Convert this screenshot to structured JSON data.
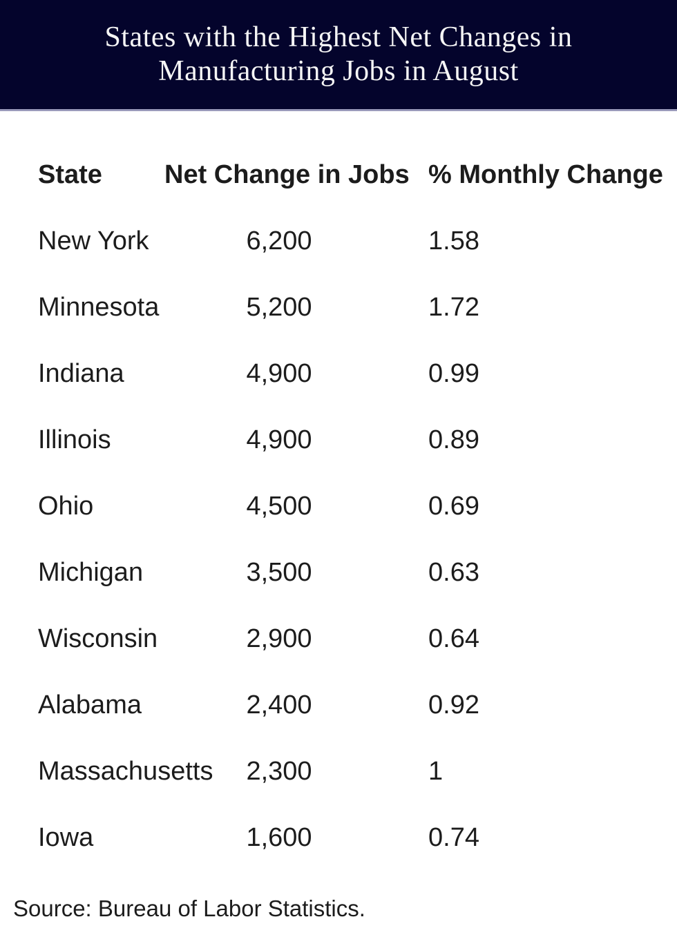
{
  "banner": {
    "title_lines": [
      "States with the Highest Net Changes in",
      "Manufacturing Jobs in August"
    ],
    "background_color": "#04042c",
    "title_color": "#f5f5f5",
    "divider_color": "#9a9aba"
  },
  "table": {
    "columns": [
      "State",
      "Net Change in Jobs",
      "% Monthly Change"
    ],
    "rows": [
      {
        "state": "New York",
        "net_change": "6,200",
        "pct_change": "1.58"
      },
      {
        "state": "Minnesota",
        "net_change": "5,200",
        "pct_change": "1.72"
      },
      {
        "state": "Indiana",
        "net_change": "4,900",
        "pct_change": "0.99"
      },
      {
        "state": "Illinois",
        "net_change": "4,900",
        "pct_change": "0.89"
      },
      {
        "state": "Ohio",
        "net_change": "4,500",
        "pct_change": "0.69"
      },
      {
        "state": "Michigan",
        "net_change": "3,500",
        "pct_change": "0.63"
      },
      {
        "state": "Wisconsin",
        "net_change": "2,900",
        "pct_change": "0.64"
      },
      {
        "state": "Alabama",
        "net_change": "2,400",
        "pct_change": "0.92"
      },
      {
        "state": "Massachusetts",
        "net_change": "2,300",
        "pct_change": "1"
      },
      {
        "state": "Iowa",
        "net_change": "1,600",
        "pct_change": "0.74"
      }
    ]
  },
  "footer": {
    "source": "Source: Bureau of Labor Statistics."
  },
  "colors": {
    "text": "#1c1c1c",
    "banner_background": "#04042c",
    "banner_title": "#f5f5f5",
    "banner_divider": "#9a9aba"
  },
  "chart_data": {
    "type": "table",
    "title": "States with the Highest Net Changes in Manufacturing Jobs in August",
    "columns": [
      "State",
      "Net Change in Jobs",
      "% Monthly Change"
    ],
    "categories": [
      "New York",
      "Minnesota",
      "Indiana",
      "Illinois",
      "Ohio",
      "Michigan",
      "Wisconsin",
      "Alabama",
      "Massachusetts",
      "Iowa"
    ],
    "series": [
      {
        "name": "Net Change in Jobs",
        "values": [
          6200,
          5200,
          4900,
          4900,
          4500,
          3500,
          2900,
          2400,
          2300,
          1600
        ]
      },
      {
        "name": "% Monthly Change",
        "values": [
          1.58,
          1.72,
          0.99,
          0.89,
          0.69,
          0.63,
          0.64,
          0.92,
          1,
          0.74
        ]
      }
    ],
    "source": "Source: Bureau of Labor Statistics."
  }
}
